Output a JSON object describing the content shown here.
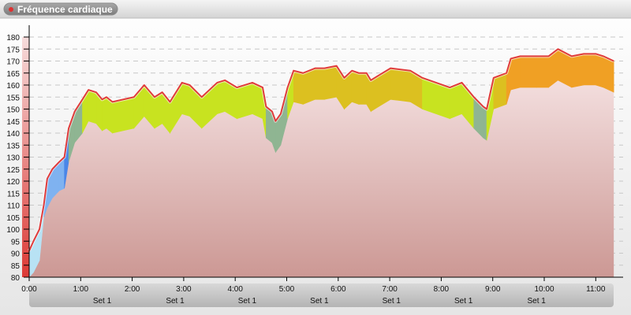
{
  "header": {
    "title": "Fréquence cardiaque"
  },
  "colors": {
    "line": "#e03c3c",
    "accent_dot": "#e03030"
  },
  "chart_data": {
    "type": "area",
    "title": "Fréquence cardiaque",
    "xlabel": "",
    "ylabel": "",
    "ylim": [
      80,
      182
    ],
    "xlim": [
      0,
      690
    ],
    "grid": true,
    "y_ticks": [
      80,
      85,
      90,
      95,
      100,
      105,
      110,
      115,
      120,
      125,
      130,
      135,
      140,
      145,
      150,
      155,
      160,
      165,
      170,
      175,
      180
    ],
    "x_ticks": [
      {
        "t": 0,
        "label": "0:00"
      },
      {
        "t": 60,
        "label": "1:00"
      },
      {
        "t": 120,
        "label": "2:00"
      },
      {
        "t": 180,
        "label": "3:00"
      },
      {
        "t": 240,
        "label": "4:00"
      },
      {
        "t": 300,
        "label": "5:00"
      },
      {
        "t": 360,
        "label": "6:00"
      },
      {
        "t": 420,
        "label": "7:00"
      },
      {
        "t": 480,
        "label": "8:00"
      },
      {
        "t": 540,
        "label": "9:00"
      },
      {
        "t": 600,
        "label": "10:00"
      },
      {
        "t": 660,
        "label": "11:00"
      }
    ],
    "set_labels": [
      {
        "t": 85,
        "label": "Set 1"
      },
      {
        "t": 170,
        "label": "Set 1"
      },
      {
        "t": 254,
        "label": "Set 1"
      },
      {
        "t": 338,
        "label": "Set 1"
      },
      {
        "t": 422,
        "label": "Set 1"
      },
      {
        "t": 506,
        "label": "Set 1"
      },
      {
        "t": 591,
        "label": "Set 1"
      }
    ],
    "zones": [
      {
        "max": 110,
        "color": "#b8e2f4"
      },
      {
        "max": 130,
        "color": "#7fb2f0"
      },
      {
        "max": 142,
        "color": "#4a86e8"
      },
      {
        "max": 154,
        "color": "#8fb592"
      },
      {
        "max": 163,
        "color": "#c8e320"
      },
      {
        "max": 168,
        "color": "#dcc020"
      },
      {
        "max": 174,
        "color": "#f0a024"
      },
      {
        "max": 999,
        "color": "#e8803c"
      }
    ],
    "series": [
      {
        "t": [
          0,
          5,
          12,
          17,
          21,
          27,
          35,
          41,
          46,
          53,
          62,
          69,
          78,
          85,
          90,
          97,
          122,
          134,
          146,
          155,
          164,
          178,
          187,
          201,
          219,
          228,
          242,
          260,
          272,
          276,
          283,
          287,
          293,
          301,
          308,
          319,
          333,
          344,
          358,
          367,
          376,
          384,
          393,
          398,
          407,
          421,
          444,
          458,
          490,
          504,
          518,
          529,
          533,
          541,
          556,
          561,
          572,
          591,
          605,
          616,
          632,
          646,
          660,
          669,
          681
        ],
        "hr": [
          91,
          95,
          100,
          110,
          121,
          125,
          128,
          130,
          142,
          149,
          154,
          158,
          157,
          154,
          155,
          153,
          155,
          160,
          155,
          157,
          153,
          161,
          160,
          155,
          161,
          162,
          159,
          161,
          159,
          151,
          149,
          145,
          148,
          159,
          166,
          165,
          167,
          167,
          168,
          163,
          166,
          165,
          165,
          162,
          164,
          167,
          166,
          163,
          159,
          161,
          155,
          151,
          150,
          163,
          165,
          171,
          172,
          172,
          172,
          175,
          172,
          173,
          173,
          172,
          170
        ],
        "low": [
          80,
          82,
          87,
          105,
          109,
          113,
          116,
          117,
          128,
          136,
          140,
          145,
          144,
          141,
          142,
          140,
          142,
          147,
          142,
          144,
          140,
          148,
          147,
          142,
          148,
          149,
          146,
          148,
          146,
          138,
          136,
          132,
          135,
          146,
          153,
          152,
          154,
          154,
          155,
          150,
          153,
          152,
          152,
          149,
          151,
          154,
          153,
          150,
          146,
          148,
          142,
          138,
          137,
          150,
          152,
          158,
          159,
          159,
          159,
          162,
          159,
          160,
          160,
          159,
          157
        ]
      }
    ]
  }
}
